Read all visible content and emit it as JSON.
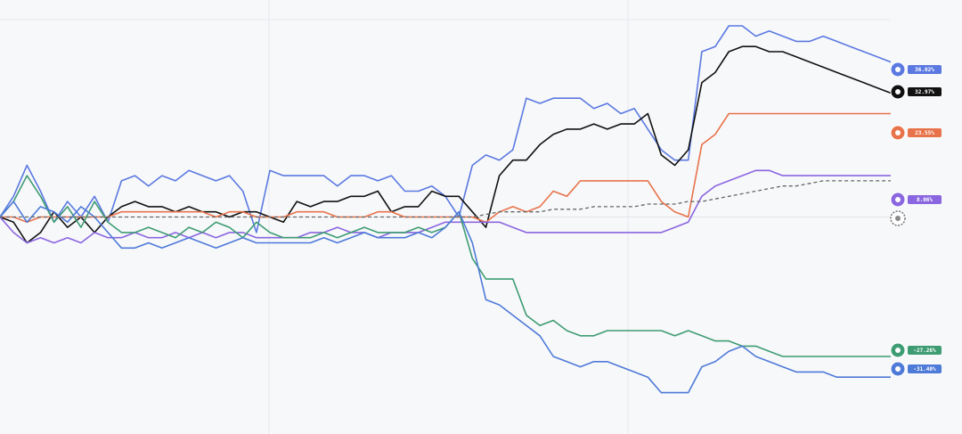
{
  "chart_data": {
    "type": "line",
    "title": "",
    "xlabel": "",
    "ylabel": "",
    "ylim": [
      -42,
      42
    ],
    "x": [
      0,
      1,
      2,
      3,
      4,
      5,
      6,
      7,
      8,
      9,
      10,
      11,
      12,
      13,
      14,
      15,
      16,
      17,
      18,
      19,
      20,
      21,
      22,
      23,
      24,
      25,
      26,
      27,
      28,
      29,
      30,
      31,
      32,
      33,
      34,
      35,
      36,
      37,
      38,
      39,
      40,
      41,
      42,
      43,
      44,
      45,
      46,
      47,
      48,
      49,
      50,
      51,
      52,
      53,
      54,
      55,
      56,
      57,
      58,
      59,
      60,
      61,
      62,
      63,
      64,
      65,
      66
    ],
    "series": [
      {
        "color": "#5b79e1",
        "label": "36.02%",
        "icon": "whale-icon",
        "values": [
          0,
          4,
          10,
          5,
          -1,
          3,
          0,
          4,
          -1,
          7,
          8,
          6,
          8,
          7,
          9,
          8,
          7,
          8,
          5,
          -3,
          9,
          8,
          8,
          8,
          8,
          6,
          8,
          8,
          7,
          8,
          5,
          5,
          6,
          4,
          0,
          10,
          12,
          11,
          13,
          23,
          22,
          23,
          23,
          23,
          21,
          22,
          20,
          21,
          17,
          13,
          11,
          11,
          32,
          33,
          37,
          37,
          35,
          36,
          35,
          34,
          34,
          35,
          34,
          33,
          32,
          31,
          30
        ]
      },
      {
        "color": "#111111",
        "label": "32.97%",
        "icon": "openai-ring-icon",
        "values": [
          0,
          -1,
          -5,
          -3,
          1,
          -2,
          0,
          -3,
          0,
          2,
          3,
          2,
          2,
          1,
          2,
          1,
          1,
          0,
          1,
          1,
          0,
          -1,
          3,
          2,
          3,
          3,
          4,
          4,
          5,
          1,
          2,
          2,
          5,
          4,
          4,
          1,
          -2,
          8,
          11,
          11,
          14,
          16,
          17,
          17,
          18,
          17,
          18,
          18,
          20,
          12,
          10,
          13,
          26,
          28,
          32,
          33,
          33,
          32,
          32,
          31,
          30,
          29,
          28,
          27,
          26,
          25,
          24
        ]
      },
      {
        "color": "#e8734a",
        "label": "23.55%",
        "icon": "sun-burst-icon",
        "values": [
          0,
          0,
          -1,
          0,
          0,
          0,
          0,
          0,
          0,
          1,
          1,
          1,
          1,
          1,
          1,
          1,
          0,
          1,
          1,
          0,
          0,
          0,
          1,
          1,
          1,
          0,
          0,
          0,
          1,
          1,
          0,
          0,
          0,
          0,
          0,
          0,
          -1,
          1,
          2,
          1,
          2,
          5,
          4,
          7,
          7,
          7,
          7,
          7,
          7,
          3,
          1,
          0,
          14,
          16,
          20,
          20,
          20,
          20,
          20,
          20,
          20,
          20,
          20,
          20,
          20,
          20,
          20
        ]
      },
      {
        "color": "#8a66e0",
        "label": "8.06%",
        "icon": "squiggle-icon",
        "values": [
          0,
          -3,
          -5,
          -4,
          -5,
          -4,
          -5,
          -3,
          -4,
          -4,
          -3,
          -4,
          -4,
          -3,
          -4,
          -3,
          -4,
          -3,
          -3,
          -4,
          -4,
          -4,
          -4,
          -3,
          -3,
          -2,
          -3,
          -3,
          -4,
          -3,
          -3,
          -3,
          -2,
          -1,
          -1,
          -1,
          -1,
          -1,
          -2,
          -3,
          -3,
          -3,
          -3,
          -3,
          -3,
          -3,
          -3,
          -3,
          -3,
          -3,
          -2,
          -1,
          4,
          6,
          7,
          8,
          9,
          9,
          8,
          8,
          8,
          8,
          8,
          8,
          8,
          8,
          8
        ]
      },
      {
        "color": "#3e9c73",
        "label": "-27.26%",
        "icon": "knot-icon",
        "values": [
          0,
          3,
          8,
          4,
          -1,
          2,
          -2,
          3,
          -1,
          -3,
          -3,
          -2,
          -3,
          -4,
          -2,
          -3,
          -1,
          -2,
          -4,
          -1,
          -3,
          -4,
          -4,
          -4,
          -3,
          -4,
          -3,
          -2,
          -3,
          -3,
          -3,
          -2,
          -3,
          -2,
          1,
          -8,
          -12,
          -12,
          -12,
          -19,
          -21,
          -20,
          -22,
          -23,
          -23,
          -22,
          -22,
          -22,
          -22,
          -22,
          -23,
          -22,
          -23,
          -24,
          -24,
          -25,
          -25,
          -26,
          -27,
          -27,
          -27,
          -27,
          -27,
          -27,
          -27,
          -27,
          -27
        ]
      },
      {
        "color": "#4e7ad8",
        "label": "-31.40%",
        "icon": "sparkle-icon",
        "values": [
          0,
          3,
          -1,
          2,
          1,
          -1,
          2,
          0,
          -3,
          -6,
          -6,
          -5,
          -6,
          -5,
          -4,
          -5,
          -6,
          -5,
          -4,
          -5,
          -5,
          -5,
          -5,
          -5,
          -4,
          -5,
          -4,
          -3,
          -4,
          -4,
          -4,
          -3,
          -4,
          -2,
          1,
          -5,
          -16,
          -17,
          -19,
          -21,
          -23,
          -27,
          -28,
          -29,
          -28,
          -28,
          -29,
          -30,
          -31,
          -34,
          -34,
          -34,
          -29,
          -28,
          -26,
          -25,
          -27,
          -28,
          -29,
          -30,
          -30,
          -30,
          -31,
          -31,
          -31,
          -31,
          -31
        ]
      },
      {
        "color": "#666666",
        "dashed": true,
        "label": "",
        "icon": "coin-icon",
        "values": [
          0,
          0,
          0,
          0,
          0,
          0,
          0,
          0,
          0,
          0,
          0,
          0,
          0,
          0,
          0,
          0,
          0,
          0,
          0,
          0,
          0,
          0,
          0,
          0,
          0,
          0,
          0,
          0,
          0,
          0,
          0,
          0,
          0,
          0,
          0,
          0,
          0.5,
          1,
          1,
          1,
          1,
          1.5,
          1.5,
          1.5,
          2,
          2,
          2,
          2,
          2.5,
          2.5,
          2.5,
          3,
          3,
          3.5,
          4,
          4.5,
          5,
          5.5,
          6,
          6,
          6.5,
          7,
          7,
          7,
          7,
          7,
          7
        ]
      }
    ],
    "grid": {
      "vertical_lines": 3
    }
  }
}
